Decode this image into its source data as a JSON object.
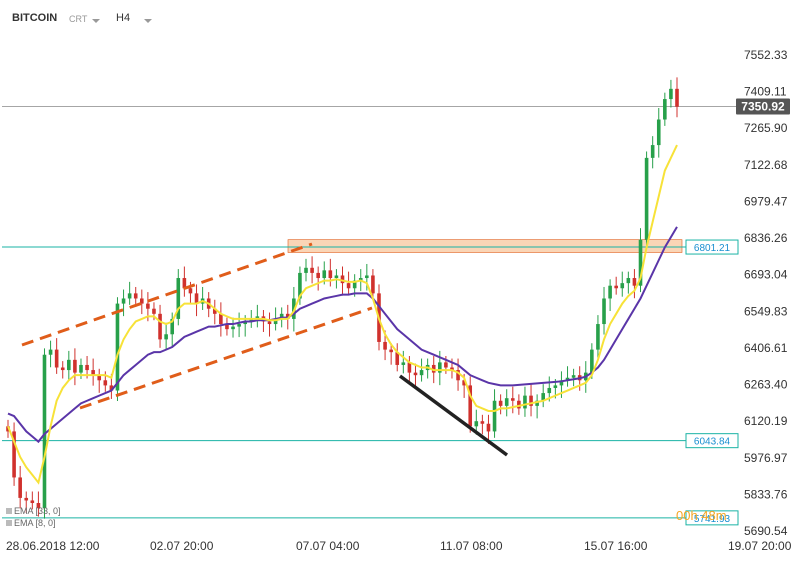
{
  "header": {
    "symbol": "BITCOIN",
    "type": "CRT",
    "timeframe": "H4"
  },
  "legend": {
    "ema1": "EMA [33, 0]",
    "ema2": "EMA [8, 0]"
  },
  "countdown": "00h 48m",
  "colors": {
    "bull": "#27a04a",
    "bear": "#d0312d",
    "ema_fast": "#f7e238",
    "ema_slow": "#5a35a8",
    "support": "#1ab3a5",
    "trend": "#e05d1a",
    "zone": "#f5b27a",
    "down_trend": "#222222"
  },
  "chart_data": {
    "type": "candlestick",
    "ylim": [
      5690.54,
      7600
    ],
    "yticks": [
      "7552.33",
      "7409.11",
      "7265.90",
      "7122.68",
      "6979.47",
      "6836.26",
      "6693.04",
      "6549.83",
      "6406.61",
      "6263.40",
      "6120.19",
      "5976.97",
      "5833.76",
      "5690.54"
    ],
    "xticks": [
      "28.06.2018  12:00",
      "02.07  20:00",
      "07.07  04:00",
      "11.07  08:00",
      "15.07  16:00",
      "19.07  20:00"
    ],
    "current_price": "7350.92",
    "horizontal_levels": [
      {
        "value": 6801.21,
        "label": "6801.21"
      },
      {
        "value": 6043.84,
        "label": "6043.84"
      },
      {
        "value": 5741.93,
        "label": "5741.93"
      }
    ],
    "resistance_zone": [
      6780,
      6830
    ],
    "closes": [
      6080,
      5900,
      5820,
      5810,
      5800,
      5780,
      6380,
      6400,
      6330,
      6320,
      6360,
      6310,
      6340,
      6320,
      6300,
      6280,
      6260,
      6240,
      6580,
      6600,
      6620,
      6600,
      6580,
      6560,
      6540,
      6440,
      6460,
      6520,
      6680,
      6640,
      6620,
      6580,
      6600,
      6560,
      6540,
      6500,
      6480,
      6490,
      6500,
      6510,
      6520,
      6530,
      6510,
      6500,
      6520,
      6540,
      6520,
      6600,
      6700,
      6720,
      6700,
      6680,
      6710,
      6680,
      6690,
      6660,
      6640,
      6670,
      6680,
      6690,
      6620,
      6430,
      6400,
      6390,
      6340,
      6350,
      6310,
      6300,
      6320,
      6340,
      6310,
      6350,
      6330,
      6320,
      6280,
      6260,
      6100,
      6120,
      6110,
      6080,
      6200,
      6180,
      6210,
      6200,
      6170,
      6220,
      6180,
      6200,
      6230,
      6250,
      6260,
      6280,
      6290,
      6300,
      6280,
      6310,
      6400,
      6500,
      6600,
      6650,
      6640,
      6660,
      6680,
      6650,
      6830,
      7150,
      7200,
      7300,
      7380,
      7420,
      7350
    ],
    "ema_fast": [
      6100,
      6040,
      5980,
      5940,
      5910,
      5880,
      5980,
      6100,
      6200,
      6250,
      6280,
      6300,
      6300,
      6300,
      6300,
      6300,
      6300,
      6290,
      6380,
      6440,
      6480,
      6510,
      6520,
      6530,
      6530,
      6510,
      6500,
      6510,
      6560,
      6580,
      6580,
      6580,
      6590,
      6580,
      6560,
      6540,
      6530,
      6520,
      6520,
      6520,
      6520,
      6520,
      6520,
      6515,
      6515,
      6520,
      6520,
      6550,
      6610,
      6640,
      6650,
      6660,
      6670,
      6670,
      6675,
      6670,
      6665,
      6665,
      6670,
      6660,
      6600,
      6520,
      6460,
      6420,
      6390,
      6370,
      6350,
      6340,
      6330,
      6330,
      6320,
      6320,
      6320,
      6320,
      6310,
      6290,
      6220,
      6180,
      6170,
      6160,
      6160,
      6170,
      6170,
      6175,
      6180,
      6185,
      6190,
      6195,
      6200,
      6210,
      6220,
      6230,
      6240,
      6250,
      6260,
      6270,
      6300,
      6360,
      6440,
      6500,
      6540,
      6580,
      6610,
      6630,
      6680,
      6800,
      6900,
      7000,
      7100,
      7150,
      7200
    ],
    "ema_slow": [
      6150,
      6140,
      6110,
      6080,
      6060,
      6040,
      6070,
      6090,
      6110,
      6130,
      6150,
      6170,
      6190,
      6200,
      6210,
      6220,
      6230,
      6240,
      6270,
      6300,
      6320,
      6340,
      6360,
      6380,
      6390,
      6390,
      6400,
      6410,
      6430,
      6450,
      6460,
      6470,
      6480,
      6490,
      6490,
      6495,
      6500,
      6500,
      6505,
      6510,
      6510,
      6515,
      6515,
      6515,
      6520,
      6525,
      6525,
      6540,
      6560,
      6570,
      6580,
      6590,
      6600,
      6605,
      6610,
      6615,
      6615,
      6620,
      6620,
      6620,
      6600,
      6570,
      6540,
      6510,
      6480,
      6460,
      6440,
      6420,
      6400,
      6390,
      6380,
      6370,
      6360,
      6350,
      6340,
      6320,
      6300,
      6290,
      6280,
      6270,
      6265,
      6260,
      6260,
      6260,
      6262,
      6264,
      6266,
      6268,
      6270,
      6272,
      6274,
      6276,
      6280,
      6284,
      6288,
      6294,
      6310,
      6330,
      6360,
      6400,
      6440,
      6480,
      6520,
      6560,
      6600,
      6650,
      6700,
      6750,
      6800,
      6840,
      6880
    ]
  }
}
